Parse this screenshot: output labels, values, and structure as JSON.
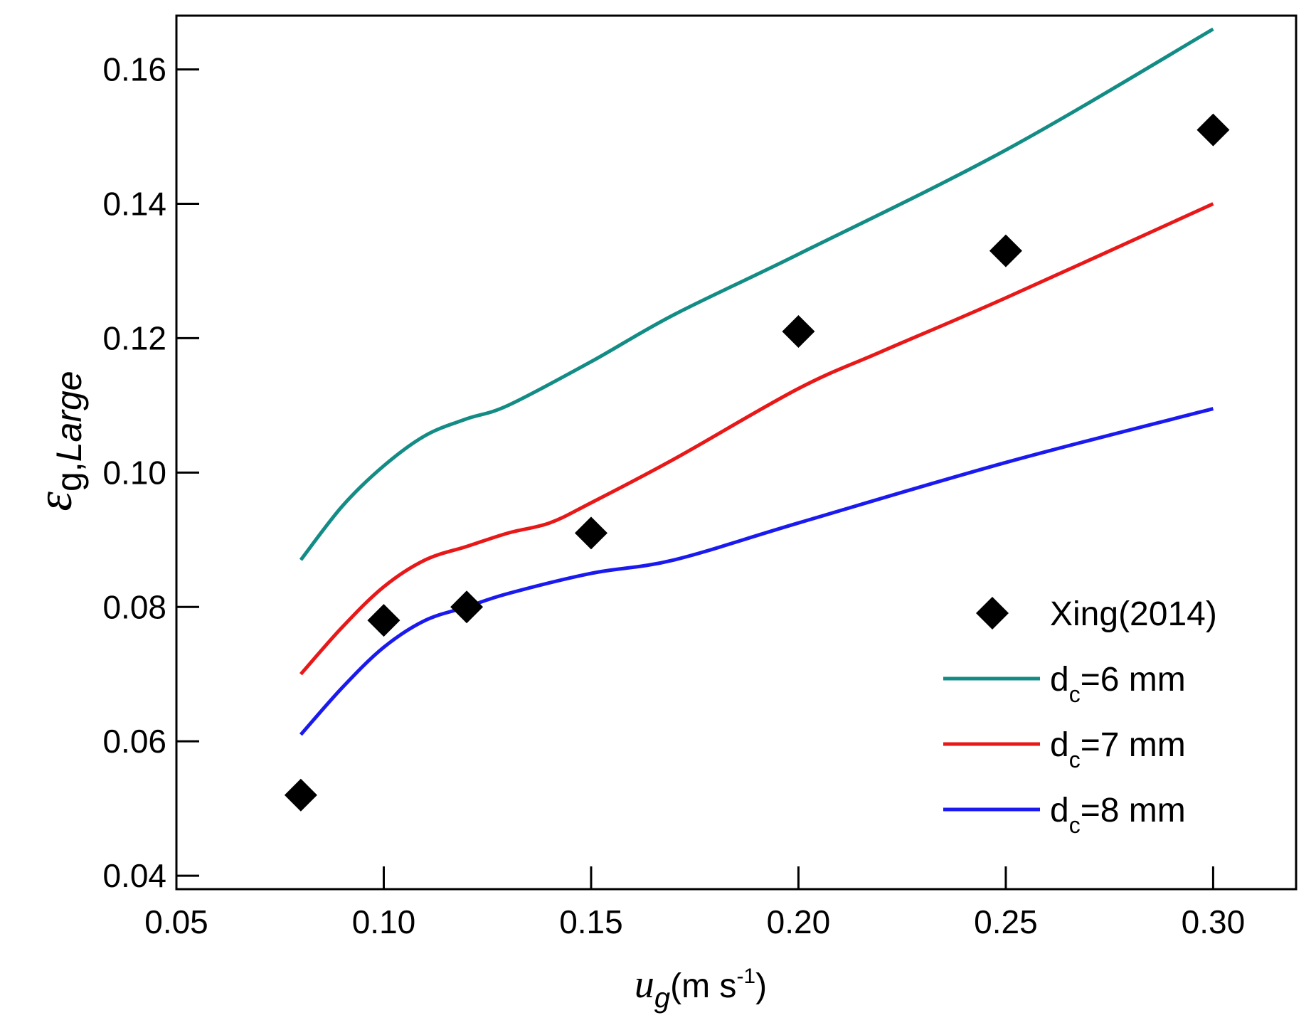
{
  "chart_data": {
    "type": "line",
    "title": "",
    "xlabel": {
      "main": "u",
      "sub": "g",
      "unit_prefix": "(m s",
      "exponent": "-1",
      "unit_suffix": ")"
    },
    "ylabel": {
      "main": "ε",
      "sub": "g,",
      "sub_italic": "Large"
    },
    "xlim": [
      0.05,
      0.32
    ],
    "ylim": [
      0.038,
      0.168
    ],
    "xticks": [
      0.05,
      0.1,
      0.15,
      0.2,
      0.25,
      0.3
    ],
    "xtick_labels": [
      "0.05",
      "0.10",
      "0.15",
      "0.20",
      "0.25",
      "0.30"
    ],
    "yticks": [
      0.04,
      0.06,
      0.08,
      0.1,
      0.12,
      0.14,
      0.16
    ],
    "ytick_labels": [
      "0.04",
      "0.06",
      "0.08",
      "0.10",
      "0.12",
      "0.14",
      "0.16"
    ],
    "grid": false,
    "legend_position": "bottom-right",
    "markers": {
      "name": "Xing(2014)",
      "color": "#000000",
      "x": [
        0.08,
        0.1,
        0.12,
        0.15,
        0.2,
        0.25,
        0.3
      ],
      "y": [
        0.052,
        0.078,
        0.08,
        0.091,
        0.121,
        0.133,
        0.151
      ]
    },
    "series": [
      {
        "name_prefix": "d",
        "name_sub": "c",
        "name_suffix": "=6 mm",
        "color": "#138c86",
        "x": [
          0.08,
          0.09,
          0.1,
          0.11,
          0.12,
          0.13,
          0.15,
          0.17,
          0.2,
          0.25,
          0.3
        ],
        "y": [
          0.087,
          0.095,
          0.101,
          0.1055,
          0.108,
          0.11,
          0.1165,
          0.1235,
          0.1325,
          0.148,
          0.166
        ]
      },
      {
        "name_prefix": "d",
        "name_sub": "c",
        "name_suffix": "=7 mm",
        "color": "#e81818",
        "x": [
          0.08,
          0.09,
          0.1,
          0.11,
          0.12,
          0.13,
          0.14,
          0.15,
          0.17,
          0.2,
          0.22,
          0.25,
          0.3
        ],
        "y": [
          0.07,
          0.077,
          0.083,
          0.087,
          0.089,
          0.091,
          0.0925,
          0.0955,
          0.102,
          0.1125,
          0.118,
          0.126,
          0.14
        ]
      },
      {
        "name_prefix": "d",
        "name_sub": "c",
        "name_suffix": "=8 mm",
        "color": "#1a1af0",
        "x": [
          0.08,
          0.09,
          0.1,
          0.11,
          0.12,
          0.13,
          0.15,
          0.17,
          0.2,
          0.25,
          0.3
        ],
        "y": [
          0.061,
          0.068,
          0.074,
          0.078,
          0.08,
          0.082,
          0.085,
          0.087,
          0.0925,
          0.1015,
          0.1095
        ]
      }
    ]
  }
}
